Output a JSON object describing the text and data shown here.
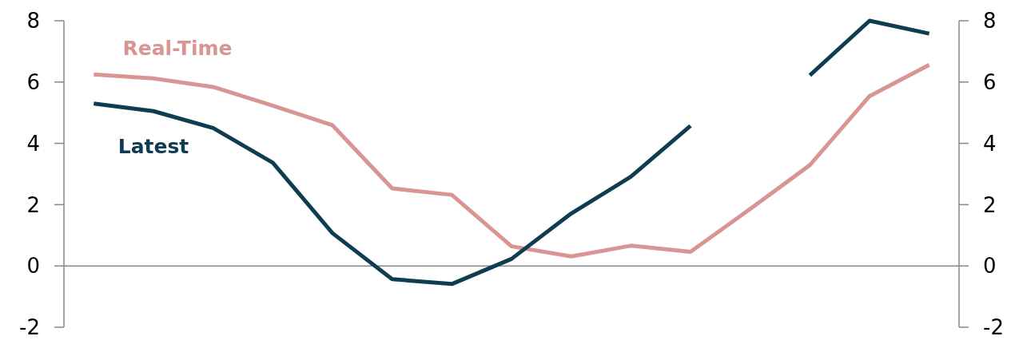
{
  "chart_data": {
    "type": "line",
    "categories": [
      null,
      null,
      null,
      null,
      null,
      null,
      null,
      null,
      null,
      null,
      null,
      null,
      null,
      null,
      null
    ],
    "series": [
      {
        "name": "Real-Time",
        "color": "#d99594",
        "values": [
          6.25,
          6.12,
          5.84,
          5.23,
          4.59,
          2.53,
          2.32,
          0.64,
          0.31,
          0.66,
          0.46,
          1.86,
          3.29,
          5.54,
          6.56
        ]
      },
      {
        "name": "Latest",
        "color": "#0e3d52",
        "values": [
          5.3,
          5.05,
          4.5,
          3.37,
          1.07,
          -0.43,
          -0.59,
          0.23,
          1.71,
          2.91,
          4.57,
          null,
          6.22,
          8.0,
          7.58
        ]
      }
    ],
    "ylim": [
      -2,
      8
    ],
    "yticks": [
      -2,
      0,
      2,
      4,
      6,
      8
    ],
    "y2lim": [
      -2,
      8
    ],
    "y2ticks": [
      -2,
      0,
      2,
      4,
      6,
      8
    ],
    "ref_lines": [
      {
        "axis": "y",
        "value": 0,
        "color": "#888888"
      }
    ],
    "grid": false,
    "marker": "none",
    "line_style": "solid"
  }
}
